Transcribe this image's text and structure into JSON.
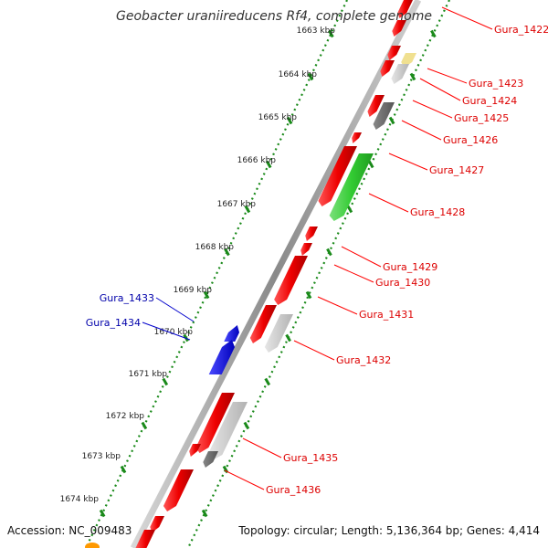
{
  "title": "Geobacter uraniireducens Rf4, complete genome",
  "accession_text": "Accession: NC_009483",
  "topology_text": "Topology: circular; Length: 5,136,364 bp; Genes: 4,414",
  "ruler": [
    "1663 kbp",
    "1664 kbp",
    "1665 kbp",
    "1666 kbp",
    "1667 kbp",
    "1668 kbp",
    "1669 kbp",
    "1670 kbp",
    "1671 kbp",
    "1672 kbp",
    "1673 kbp",
    "1674 kbp"
  ],
  "gene_labels": {
    "gura_1422": "Gura_1422",
    "gura_1423": "Gura_1423",
    "gura_1424": "Gura_1424",
    "gura_1425": "Gura_1425",
    "gura_1426": "Gura_1426",
    "gura_1427": "Gura_1427",
    "gura_1428": "Gura_1428",
    "gura_1429": "Gura_1429",
    "gura_1430": "Gura_1430",
    "gura_1431": "Gura_1431",
    "gura_1432": "Gura_1432",
    "gura_1433": "Gura_1433",
    "gura_1434": "Gura_1434",
    "gura_1435": "Gura_1435",
    "gura_1436": "Gura_1436"
  },
  "colors": {
    "forward_gene": "#ff0000",
    "reverse_gene": "#0000ff",
    "rna_green": "#33cc33",
    "pseudo_gray": "#c8c8c8",
    "dark_gray": "#666666",
    "yellow": "#f0e090",
    "orange": "#ff9900",
    "tick_green": "#1a8a1a",
    "backbone": "#888888"
  }
}
